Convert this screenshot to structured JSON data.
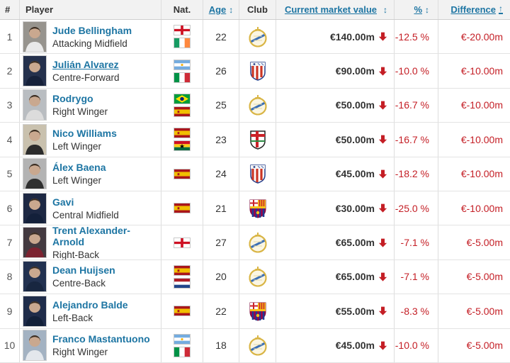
{
  "colors": {
    "accent_blue": "#1d75a3",
    "negative_red": "#c41e25",
    "header_bg": "#f2f2f2",
    "border": "#dddddd",
    "text_dark": "#333333"
  },
  "table": {
    "headers": {
      "rank": "#",
      "player": "Player",
      "nat": "Nat.",
      "age": "Age",
      "club": "Club",
      "value": "Current market value",
      "pct": "%",
      "diff": "Difference",
      "sort_updown_icon": "↕",
      "sort_up_icon": "↑"
    },
    "rows": [
      {
        "rank": "1",
        "name": "Jude Bellingham",
        "position": "Attacking Midfield",
        "nationalities": [
          "England",
          "Ireland"
        ],
        "age": "22",
        "club": "Real Madrid",
        "market_value": "€140.00m",
        "value_trend": "down",
        "percent": "-12.5 %",
        "difference": "€-20.00m"
      },
      {
        "rank": "2",
        "name": "Julián Alvarez",
        "position": "Centre-Forward",
        "nationalities": [
          "Argentina",
          "Italy"
        ],
        "age": "26",
        "club": "Atlético de Madrid",
        "market_value": "€90.00m",
        "value_trend": "down",
        "percent": "-10.0 %",
        "difference": "€-10.00m",
        "name_underlined": true
      },
      {
        "rank": "3",
        "name": "Rodrygo",
        "position": "Right Winger",
        "nationalities": [
          "Brazil",
          "Spain"
        ],
        "age": "25",
        "club": "Real Madrid",
        "market_value": "€50.00m",
        "value_trend": "down",
        "percent": "-16.7 %",
        "difference": "€-10.00m"
      },
      {
        "rank": "4",
        "name": "Nico Williams",
        "position": "Left Winger",
        "nationalities": [
          "Spain",
          "Ghana"
        ],
        "age": "23",
        "club": "Athletic Bilbao",
        "market_value": "€50.00m",
        "value_trend": "down",
        "percent": "-16.7 %",
        "difference": "€-10.00m"
      },
      {
        "rank": "5",
        "name": "Álex Baena",
        "position": "Left Winger",
        "nationalities": [
          "Spain"
        ],
        "age": "24",
        "club": "Atlético de Madrid",
        "market_value": "€45.00m",
        "value_trend": "down",
        "percent": "-18.2 %",
        "difference": "€-10.00m"
      },
      {
        "rank": "6",
        "name": "Gavi",
        "position": "Central Midfield",
        "nationalities": [
          "Spain"
        ],
        "age": "21",
        "club": "FC Barcelona",
        "market_value": "€30.00m",
        "value_trend": "down",
        "percent": "-25.0 %",
        "difference": "€-10.00m"
      },
      {
        "rank": "7",
        "name": "Trent Alexander-Arnold",
        "position": "Right-Back",
        "nationalities": [
          "England"
        ],
        "age": "27",
        "club": "Real Madrid",
        "market_value": "€65.00m",
        "value_trend": "down",
        "percent": "-7.1 %",
        "difference": "€-5.00m"
      },
      {
        "rank": "8",
        "name": "Dean Huijsen",
        "position": "Centre-Back",
        "nationalities": [
          "Spain",
          "Netherlands"
        ],
        "age": "20",
        "club": "Real Madrid",
        "market_value": "€65.00m",
        "value_trend": "down",
        "percent": "-7.1 %",
        "difference": "€-5.00m"
      },
      {
        "rank": "9",
        "name": "Alejandro Balde",
        "position": "Left-Back",
        "nationalities": [
          "Spain"
        ],
        "age": "22",
        "club": "FC Barcelona",
        "market_value": "€55.00m",
        "value_trend": "down",
        "percent": "-8.3 %",
        "difference": "€-5.00m"
      },
      {
        "rank": "10",
        "name": "Franco Mastantuono",
        "position": "Right Winger",
        "nationalities": [
          "Argentina",
          "Italy"
        ],
        "age": "18",
        "club": "Real Madrid",
        "market_value": "€45.00m",
        "value_trend": "down",
        "percent": "-10.0 %",
        "difference": "€-5.00m"
      }
    ]
  }
}
